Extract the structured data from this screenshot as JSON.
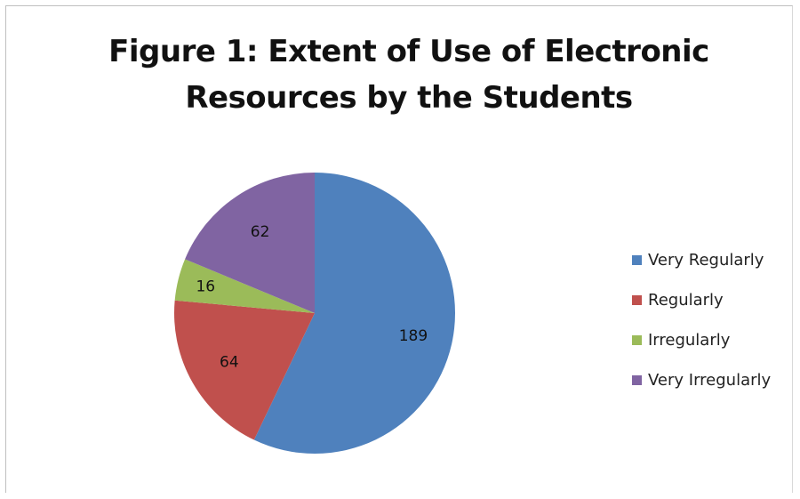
{
  "chart_data": {
    "type": "pie",
    "title": "Figure 1: Extent of Use of Electronic Resources by the Students",
    "title_lines": [
      "Figure 1: Extent of Use of Electronic",
      "Resources by the Students"
    ],
    "categories": [
      "Very Regularly",
      "Regularly",
      "Irregularly",
      "Very Irregularly"
    ],
    "values": [
      189,
      64,
      16,
      62
    ],
    "colors": [
      "#4f81bd",
      "#c0504d",
      "#9bbb59",
      "#8064a2"
    ],
    "data_labels": [
      "189",
      "64",
      "16",
      "62"
    ],
    "legend_position": "right",
    "start_angle": "top, clockwise"
  }
}
